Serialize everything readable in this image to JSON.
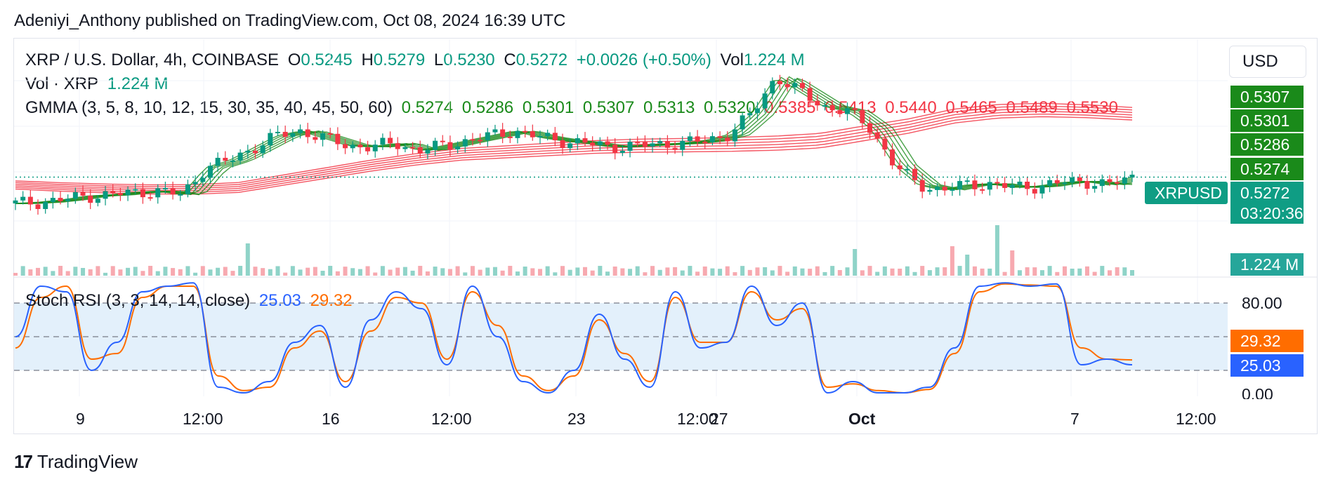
{
  "header": {
    "published": "Adeniyi_Anthony published on TradingView.com, Oct 08, 2024 16:39 UTC"
  },
  "legend": {
    "symbol": "XRP / U.S. Dollar, 4h, COINBASE",
    "o_label": "O",
    "o_value": "0.5245",
    "h_label": "H",
    "h_value": "0.5279",
    "l_label": "L",
    "l_value": "0.5230",
    "c_label": "C",
    "c_value": "0.5272",
    "change": "+0.0026 (+0.50%)",
    "vol_label": "Vol",
    "vol_value": "1.224 M",
    "vol_row_label": "Vol · XRP",
    "vol_row_value": "1.224 M",
    "gmma_label": "GMMA (3, 5, 8, 10, 12, 15, 30, 35, 40, 45, 50, 60)",
    "gmma_short": [
      "0.5274",
      "0.5286",
      "0.5301",
      "0.5307",
      "0.5313",
      "0.5320"
    ],
    "gmma_long": [
      "0.5385",
      "0.5413",
      "0.5440",
      "0.5465",
      "0.5489",
      "0.5530"
    ],
    "stoch_label": "Stoch RSI (3, 3, 14, 14, close)",
    "stoch_k": "25.03",
    "stoch_d": "29.32"
  },
  "currency_button": "USD",
  "price_tags": {
    "gmma_tags": [
      "0.5307",
      "0.5301",
      "0.5286",
      "0.5274"
    ],
    "symbol_tag": "XRPUSD",
    "last_price": "0.5272",
    "countdown": "03:20:36",
    "volume": "1.224 M",
    "stoch_d": "29.32",
    "stoch_k": "25.03"
  },
  "stoch_axis": [
    "80.00",
    "0.00"
  ],
  "time_axis": [
    "9",
    "12:00",
    "16",
    "12:00",
    "23",
    "12:00",
    "27",
    "Oct",
    "7",
    "12:00"
  ],
  "footer": {
    "brand": "TradingView"
  },
  "colors": {
    "up": "#089981",
    "down": "#f23645",
    "short_ma": "#1a8a1a",
    "long_ma": "#f23645",
    "k_line": "#2962ff",
    "d_line": "#ff6d00",
    "band": "#e3f0fb"
  },
  "chart_data": [
    {
      "type": "line",
      "title": "XRP / U.S. Dollar, 4h, COINBASE",
      "series": [
        {
          "name": "Close",
          "values": [
            0.5165,
            0.517,
            0.518,
            0.5195,
            0.52,
            0.521,
            0.5215,
            0.52,
            0.531,
            0.534,
            0.539,
            0.544,
            0.546,
            0.543,
            0.54,
            0.5395,
            0.541,
            0.538,
            0.54,
            0.542,
            0.544,
            0.546,
            0.5435,
            0.542,
            0.541,
            0.5395,
            0.54,
            0.5405,
            0.541,
            0.542,
            0.5445,
            0.553,
            0.568,
            0.562,
            0.556,
            0.554,
            0.547,
            0.532,
            0.524,
            0.522,
            0.524,
            0.5245,
            0.523,
            0.5235,
            0.525,
            0.5255,
            0.524,
            0.5272
          ]
        },
        {
          "name": "GMMA long (60)",
          "values": [
            0.524,
            0.5232,
            0.5226,
            0.5222,
            0.5222,
            0.523,
            0.526,
            0.529,
            0.532,
            0.5345,
            0.5365,
            0.5375,
            0.5385,
            0.5395,
            0.54,
            0.5402,
            0.5405,
            0.541,
            0.542,
            0.545,
            0.548,
            0.552,
            0.554,
            0.5545,
            0.554,
            0.553
          ]
        }
      ],
      "ylim": [
        0.5165,
        0.575
      ]
    },
    {
      "type": "line",
      "title": "Stoch RSI (3, 3, 14, 14, close)",
      "series": [
        {
          "name": "K",
          "values": [
            50,
            95,
            90,
            20,
            45,
            90,
            95,
            98,
            5,
            0,
            10,
            45,
            60,
            5,
            65,
            90,
            75,
            25,
            95,
            50,
            10,
            0,
            20,
            70,
            30,
            5,
            90,
            40,
            45,
            95,
            60,
            80,
            0,
            10,
            0,
            0,
            5,
            40,
            95,
            98,
            95,
            97,
            25,
            30,
            25.03
          ]
        },
        {
          "name": "D",
          "values": [
            40,
            85,
            95,
            30,
            35,
            85,
            95,
            95,
            15,
            2,
            5,
            40,
            55,
            10,
            55,
            85,
            80,
            30,
            90,
            60,
            15,
            2,
            15,
            65,
            35,
            10,
            85,
            45,
            45,
            90,
            65,
            75,
            5,
            8,
            2,
            0,
            3,
            35,
            90,
            97,
            96,
            95,
            40,
            30,
            29.32
          ]
        }
      ],
      "ylim": [
        0,
        100
      ],
      "bands": [
        20,
        50,
        80
      ]
    }
  ]
}
